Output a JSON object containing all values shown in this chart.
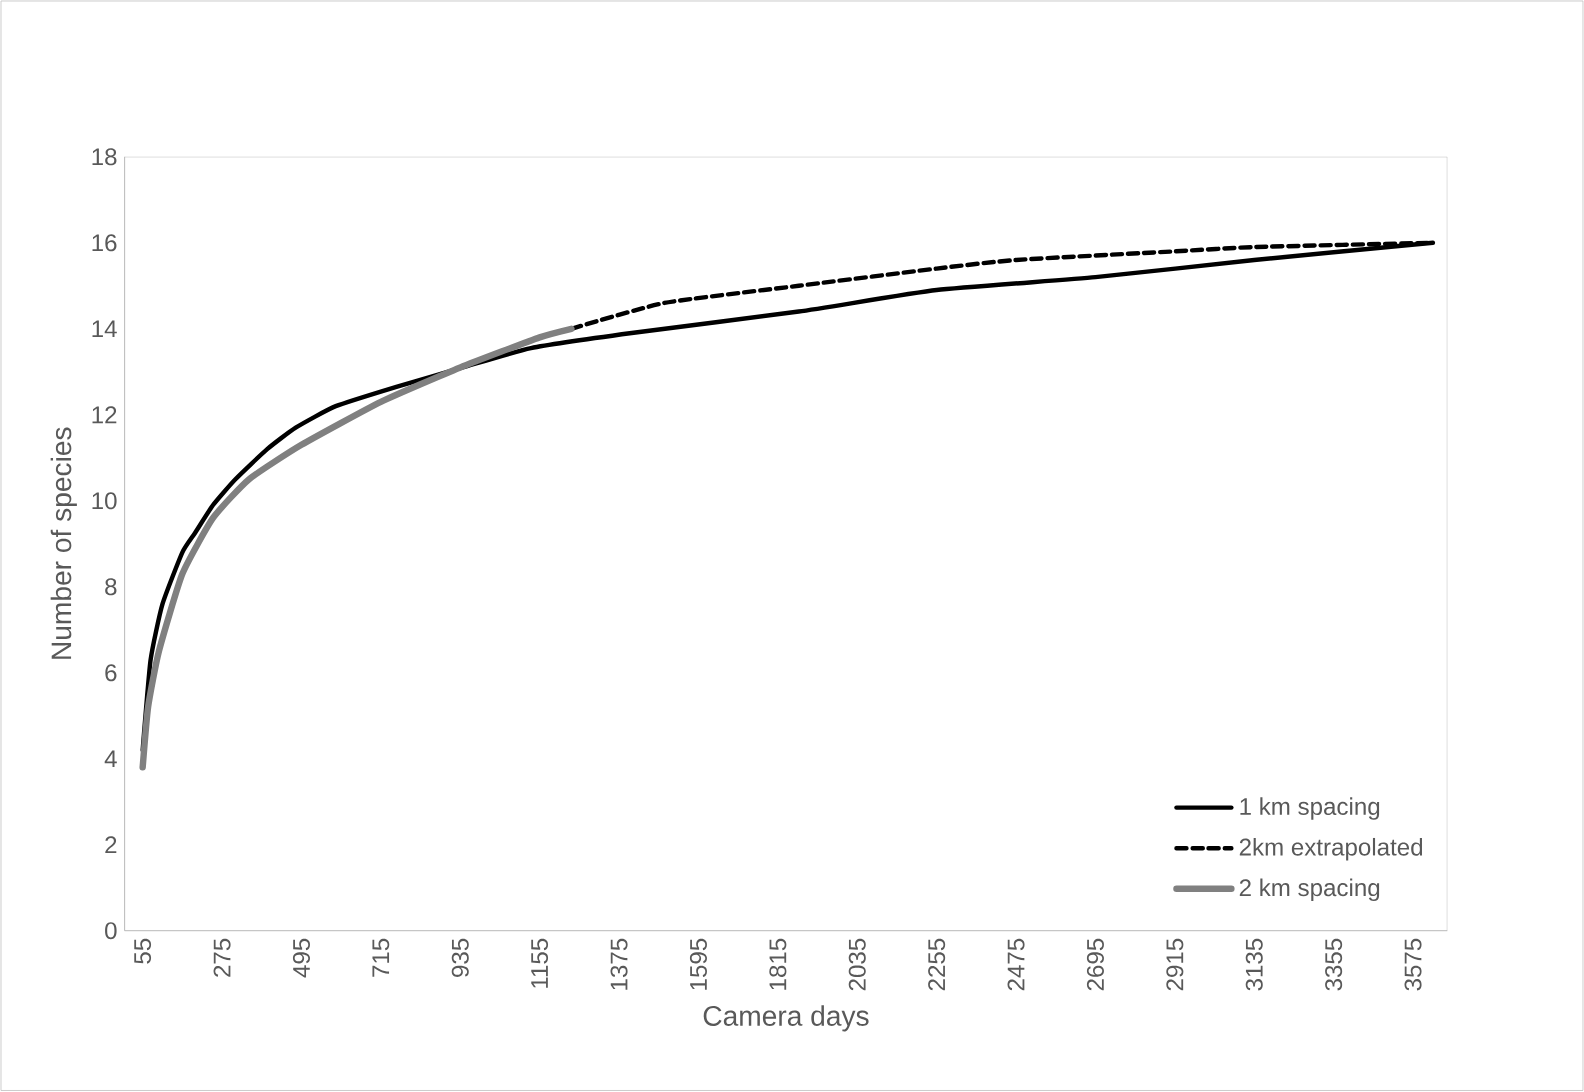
{
  "chart_data": {
    "type": "line",
    "xlabel": "Camera days",
    "ylabel": "Number of species",
    "xlim": [
      5,
      3670
    ],
    "xticks": [
      55,
      275,
      495,
      715,
      935,
      1155,
      1375,
      1595,
      1815,
      2035,
      2255,
      2475,
      2695,
      2915,
      3135,
      3355,
      3575
    ],
    "ylim": [
      0,
      18
    ],
    "yticks": [
      0,
      2,
      4,
      6,
      8,
      10,
      12,
      14,
      16,
      18
    ],
    "grid": false,
    "legend": "bottom right",
    "marker": "none",
    "series": [
      {
        "name": "1 km spacing",
        "color": "#000000",
        "line_style": "solid",
        "x": [
          55,
          77,
          110,
          165,
          200,
          250,
          312,
          400,
          479,
          590,
          758,
          942,
          1131,
          1410,
          1873,
          2255,
          2695,
          3135,
          3630
        ],
        "values": [
          4.2,
          6.3,
          7.6,
          8.8,
          9.25,
          9.9,
          10.5,
          11.2,
          11.7,
          12.2,
          12.65,
          13.1,
          13.55,
          13.9,
          14.4,
          14.9,
          15.2,
          15.6,
          16.0
        ]
      },
      {
        "name": "2km extrapolated",
        "color": "#000000",
        "line_style": "dashed",
        "x": [
          1243,
          1500,
          1873,
          2255,
          2475,
          2915,
          3135,
          3630
        ],
        "values": [
          14.0,
          14.6,
          15.0,
          15.4,
          15.6,
          15.8,
          15.9,
          16.0
        ]
      },
      {
        "name": "2 km spacing",
        "color": "#808080",
        "line_style": "solid",
        "x": [
          55,
          70,
          100,
          165,
          250,
          350,
          495,
          715,
          935,
          1155,
          1243
        ],
        "values": [
          3.8,
          5.2,
          6.5,
          8.3,
          9.6,
          10.5,
          11.3,
          12.3,
          13.1,
          13.8,
          14.0
        ]
      }
    ]
  }
}
